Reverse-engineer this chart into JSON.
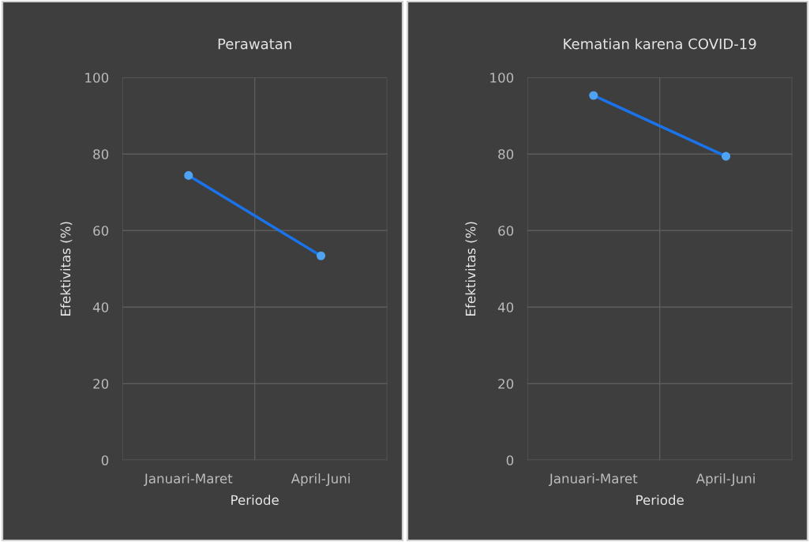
{
  "chart_data": [
    {
      "type": "line",
      "title": "Perawatan",
      "xlabel": "Periode",
      "ylabel": "Efektivitas (%)",
      "categories": [
        "Januari-Maret",
        "April-Juni"
      ],
      "series": [
        {
          "color": "#1a73e8",
          "values": [
            74.4,
            53.4
          ]
        }
      ],
      "ylim": [
        0,
        100
      ],
      "yticks": [
        0,
        20,
        40,
        60,
        80,
        100
      ],
      "grid": true,
      "marker": "circle",
      "line_style": "solid"
    },
    {
      "type": "line",
      "title": "Kematian karena COVID-19",
      "xlabel": "Periode",
      "ylabel": "Efektivitas (%)",
      "categories": [
        "Januari-Maret",
        "April-Juni"
      ],
      "series": [
        {
          "color": "#1a73e8",
          "values": [
            95.3,
            79.4
          ]
        }
      ],
      "ylim": [
        0,
        100
      ],
      "yticks": [
        0,
        20,
        40,
        60,
        80,
        100
      ],
      "grid": true,
      "marker": "circle",
      "line_style": "solid"
    }
  ]
}
